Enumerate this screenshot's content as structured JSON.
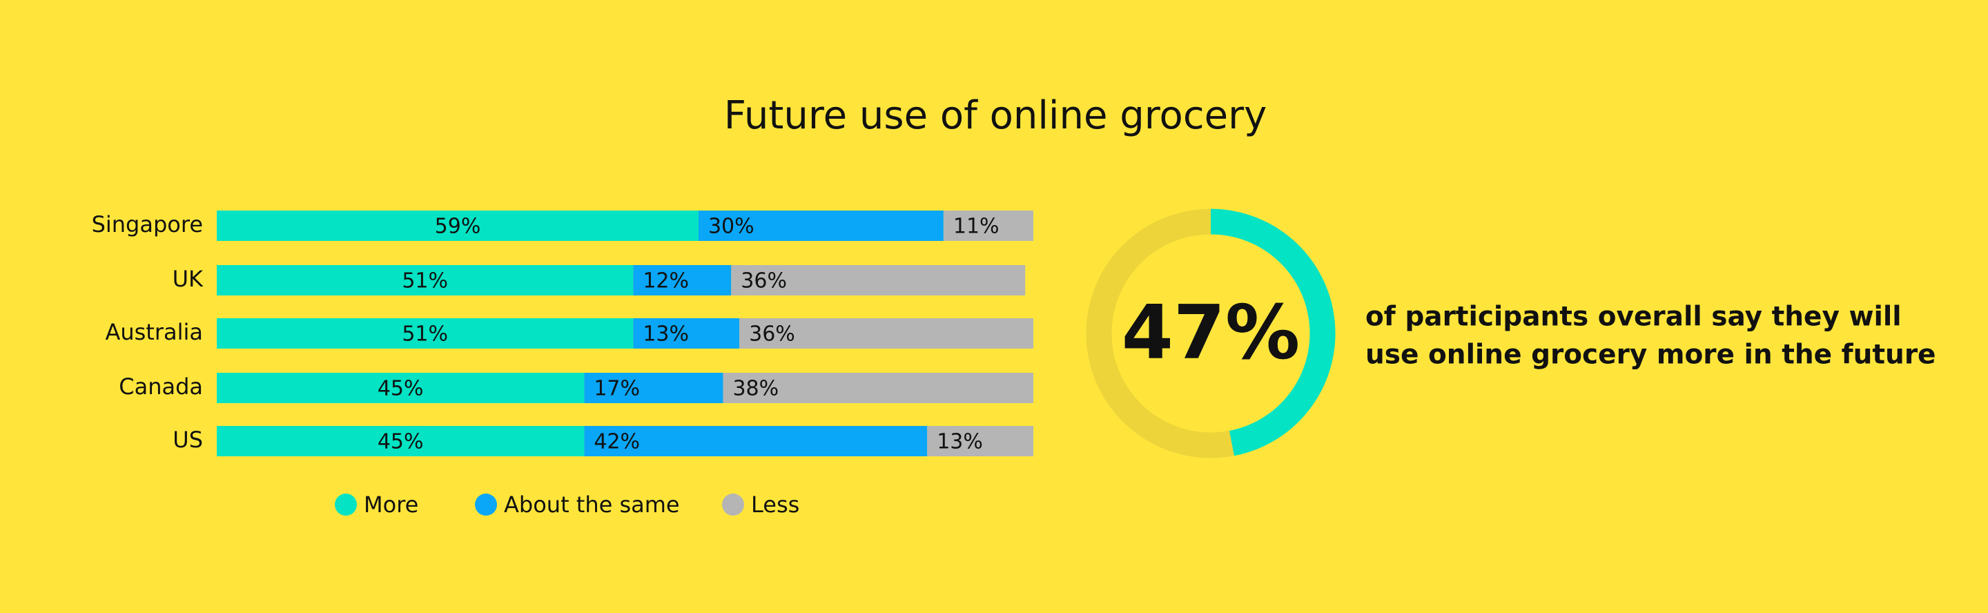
{
  "chart_data": [
    {
      "type": "bar",
      "orientation": "horizontal",
      "stacked": true,
      "title": "Future use of online grocery",
      "categories": [
        "Singapore",
        "UK",
        "Australia",
        "Canada",
        "US"
      ],
      "xlim": [
        0,
        100
      ],
      "series": [
        {
          "name": "More",
          "color": "#04e3c3",
          "values": [
            59,
            51,
            51,
            45,
            45
          ],
          "value_labels": [
            "59%",
            "51%",
            "51%",
            "45%",
            "45%"
          ]
        },
        {
          "name": "About the same",
          "color": "#0aa6f7",
          "values": [
            30,
            12,
            13,
            17,
            42
          ],
          "value_labels": [
            "30%",
            "12%",
            "13%",
            "17%",
            "42%"
          ]
        },
        {
          "name": "Less",
          "color": "#b5b5b5",
          "values": [
            11,
            36,
            36,
            38,
            13
          ],
          "value_labels": [
            "11%",
            "36%",
            "36%",
            "38%",
            "13%"
          ]
        }
      ]
    },
    {
      "type": "pie",
      "donut": true,
      "values": [
        47,
        53
      ],
      "value_labels": [
        "47%",
        null
      ],
      "colors": [
        "#04e3c3",
        "#ecd43a"
      ],
      "annotation": [
        "of participants overall say they will",
        "use online grocery more in the future"
      ]
    }
  ]
}
